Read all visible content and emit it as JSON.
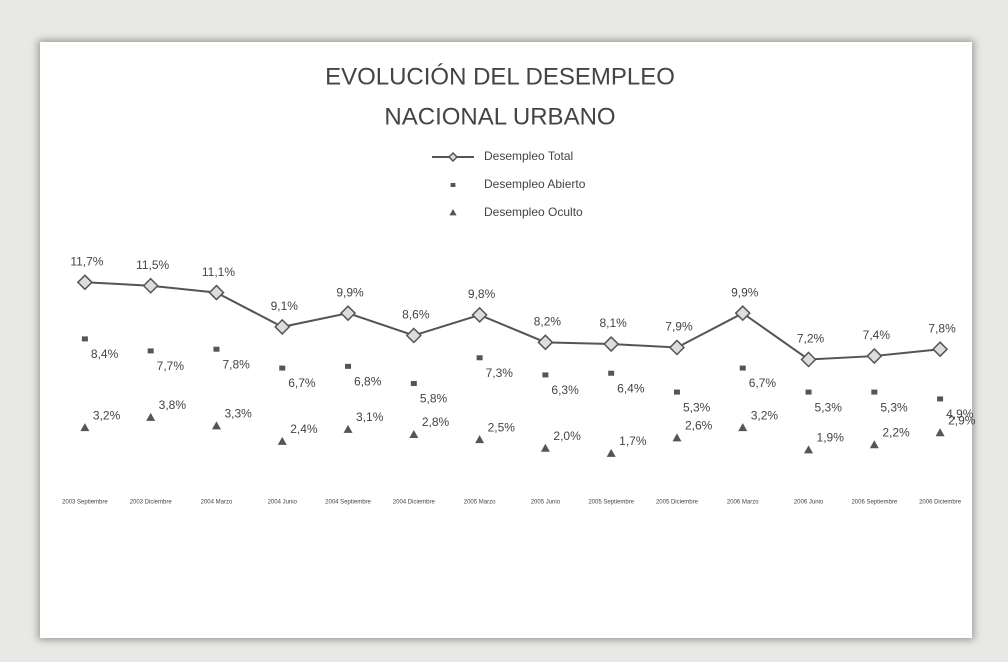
{
  "chart_data": {
    "type": "line",
    "title": "EVOLUCIÓN DEL DESEMPLEO",
    "subtitle": "NACIONAL URBANO",
    "categories": [
      "2003 Septiembre",
      "2003 Diciembre",
      "2004 Marzo",
      "2004 Junio",
      "2004 Septiembre",
      "2004 Diciembre",
      "2005 Marzo",
      "2005 Junio",
      "2005 Septiembre",
      "2005 Diciembre",
      "2006 Marzo",
      "2006 Junio",
      "2006 Septiembre",
      "2006 Diciembre"
    ],
    "series": [
      {
        "name": "Desempleo Total",
        "color": "#555555",
        "marker": "diamond",
        "line": true,
        "values": [
          11.7,
          11.5,
          11.1,
          9.1,
          9.9,
          8.6,
          9.8,
          8.2,
          8.1,
          7.9,
          9.9,
          7.2,
          7.4,
          7.8
        ],
        "value_labels": [
          "11,7%",
          "11,5%",
          "11,1%",
          "9,1%",
          "9,9%",
          "8,6%",
          "9,8%",
          "8,2%",
          "8,1%",
          "7,9%",
          "9,9%",
          "7,2%",
          "7,4%",
          "7,8%"
        ]
      },
      {
        "name": "Desempleo Abierto",
        "color": "#555555",
        "marker": "square",
        "line": false,
        "values": [
          8.4,
          7.7,
          7.8,
          6.7,
          6.8,
          5.8,
          7.3,
          6.3,
          6.4,
          5.3,
          6.7,
          5.3,
          5.3,
          4.9
        ],
        "value_labels": [
          "8,4%",
          "7,7%",
          "7,8%",
          "6,7%",
          "6,8%",
          "5,8%",
          "7,3%",
          "6,3%",
          "6,4%",
          "5,3%",
          "6,7%",
          "5,3%",
          "5,3%",
          "4,9%"
        ]
      },
      {
        "name": "Desempleo Oculto",
        "color": "#555555",
        "marker": "triangle",
        "line": false,
        "values": [
          3.2,
          3.8,
          3.3,
          2.4,
          3.1,
          2.8,
          2.5,
          2.0,
          1.7,
          2.6,
          3.2,
          1.9,
          2.2,
          2.9
        ],
        "value_labels": [
          "3,2%",
          "3,8%",
          "3,3%",
          "2,4%",
          "3,1%",
          "2,8%",
          "2,5%",
          "2,0%",
          "1,7%",
          "2,6%",
          "3,2%",
          "1,9%",
          "2,2%",
          "2,9%"
        ]
      }
    ],
    "ylim": [
      0,
      13
    ]
  }
}
